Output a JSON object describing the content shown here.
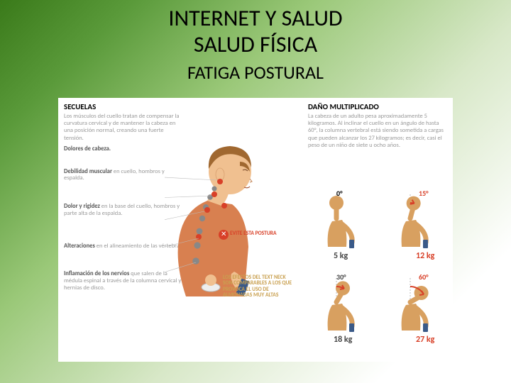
{
  "header": {
    "title_line1": "INTERNET Y SALUD",
    "title_line2": "SALUD FÍSICA",
    "subtitle": "FATIGA POSTURAL"
  },
  "left_panel": {
    "heading": "SECUELAS",
    "description": "Los músculos del cuello tratan de compensar la curvatura cervical y de mantener la cabeza en una posición normal, creando una fuerte tensión.",
    "symptoms": [
      {
        "bold": "Dolores de cabeza.",
        "rest": ""
      },
      {
        "bold": "Debilidad muscular",
        "rest": " en cuello, hombros y espalda."
      },
      {
        "bold": "Dolor y rigidez",
        "rest": " en la base del cuello, hombros y parte alta de la espalda."
      },
      {
        "bold": "Alteraciones",
        "rest": " en el alineamiento de las vértebras."
      },
      {
        "bold": "Inflamación de los nervios",
        "rest": " que salen de la médula espinal a través de la columna cervical y hernias de disco."
      }
    ]
  },
  "center_panel": {
    "warning_label": "EVITE ESTA POSTURA",
    "note_text": "LOS EFECTOS DEL TEXT NECK SON COMPARABLES A LOS QUE PROVOCA EL USO DE ALMOHADAS MUY ALTAS"
  },
  "right_panel": {
    "heading": "DAÑO MULTIPLICADO",
    "description": "La cabeza de un adulto pesa aproximadamente 5 kilogramos. Al inclinar el cuello en un ángulo de hasta 60°, la columna vertebral está siendo sometida a cargas que pueden alcanzar los 27 kilogramos; es decir, casi el peso de un niño de siete u ocho años."
  },
  "postures": [
    {
      "angle": "0°",
      "weight": "5 kg",
      "angle_color": "#000000",
      "weight_color": "#444444",
      "tilt": 0,
      "arc_color": null
    },
    {
      "angle": "15°",
      "weight": "12 kg",
      "angle_color": "#d84028",
      "weight_color": "#d84028",
      "tilt": 15,
      "arc_color": "#d84028"
    },
    {
      "angle": "30°",
      "weight": "18 kg",
      "angle_color": "#444444",
      "weight_color": "#444444",
      "tilt": 30,
      "arc_color": "#d84028"
    },
    {
      "angle": "60°",
      "weight": "27 kg",
      "angle_color": "#d84028",
      "weight_color": "#d84028",
      "tilt": 60,
      "arc_color": "#d84028"
    }
  ],
  "styling": {
    "skin_color": "#f0c090",
    "shirt_color": "#d88050",
    "hair_color": "#a06830",
    "phone_color": "#3a5a88",
    "spine_color": "#888888",
    "pain_color": "#d84028",
    "silhouette_color": "#d8a060",
    "background": "#ffffff",
    "page_gradient": [
      "#3a7a1a",
      "#ffffff"
    ],
    "title_fontsize": 32,
    "subtitle_fontsize": 26,
    "body_fontsize": 9
  }
}
